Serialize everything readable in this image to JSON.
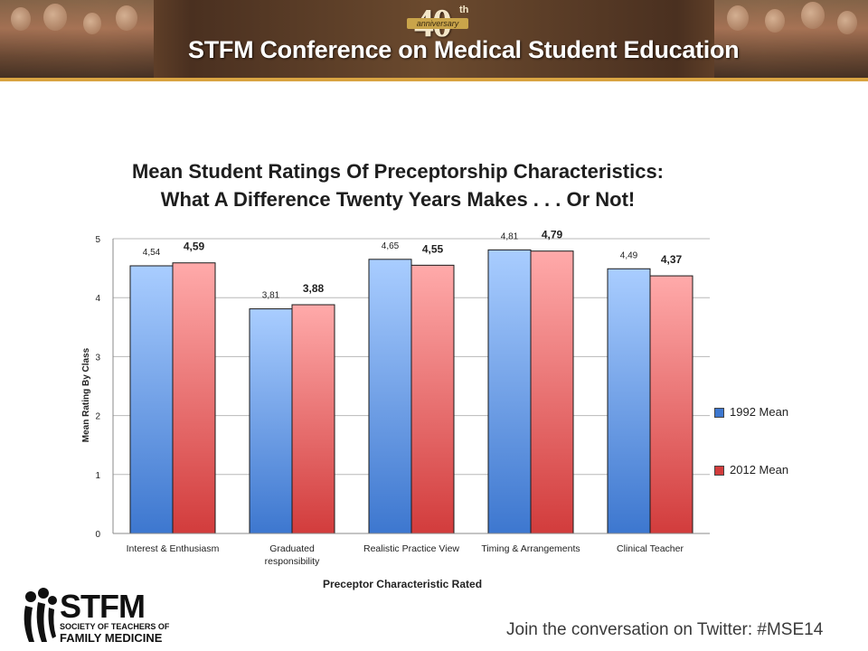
{
  "banner": {
    "anniversary_number": "40",
    "anniversary_suffix": "th",
    "anniversary_word": "anniversary",
    "title": "STFM Conference on Medical Student Education"
  },
  "chart_data": {
    "type": "bar",
    "title_line1": "Mean Student Ratings Of Preceptorship Characteristics:",
    "title_line2": "What A Difference Twenty Years Makes . . . Or Not!",
    "xlabel": "Preceptor Characteristic Rated",
    "ylabel": "Mean Rating By Class",
    "ylim": [
      0,
      5
    ],
    "yticks": [
      "0",
      "1",
      "2",
      "3",
      "4",
      "5"
    ],
    "grid": true,
    "legend_position": "right",
    "categories": [
      [
        "Interest & Enthusiasm"
      ],
      [
        "Graduated",
        "responsibility"
      ],
      [
        "Realistic Practice View"
      ],
      [
        "Timing & Arrangements"
      ],
      [
        "Clinical Teacher"
      ]
    ],
    "series": [
      {
        "name": "1992 Mean",
        "values": [
          4.54,
          3.81,
          4.65,
          4.81,
          4.49
        ],
        "labels": [
          "4,54",
          "3,81",
          "4,65",
          "4,81",
          "4,49"
        ],
        "color": "#5b8fd8"
      },
      {
        "name": "2012 Mean",
        "values": [
          4.59,
          3.88,
          4.55,
          4.79,
          4.37
        ],
        "labels": [
          "4,59",
          "3,88",
          "4,55",
          "4,79",
          "4,37"
        ],
        "color": "#e05a5a"
      }
    ]
  },
  "footer": {
    "logo_text": "STFM",
    "logo_sub": "SOCIETY OF TEACHERS OF",
    "logo_sub2": "FAMILY MEDICINE",
    "twitter": "Join the conversation on Twitter: #MSE14"
  }
}
